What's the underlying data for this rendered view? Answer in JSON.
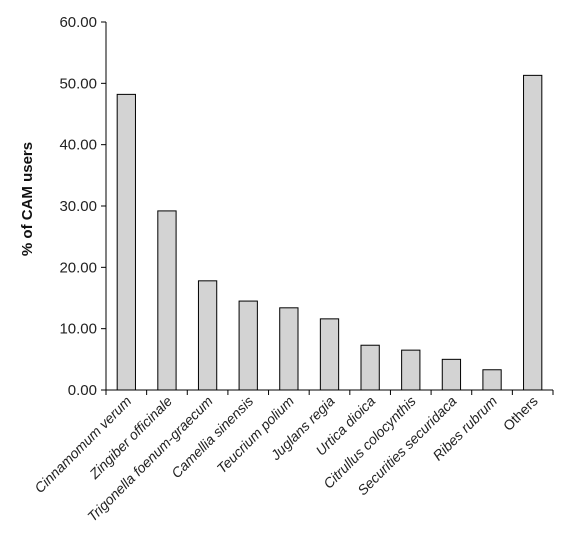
{
  "chart_data": {
    "type": "bar",
    "title": "",
    "xlabel": "",
    "ylabel": "% of CAM users",
    "ylim": [
      0,
      60
    ],
    "yticks": [
      "0.00",
      "10.00",
      "20.00",
      "30.00",
      "40.00",
      "50.00",
      "60.00"
    ],
    "grid": false,
    "bar_color": "#d3d3d3",
    "bar_edge_color": "#000000",
    "categories": [
      "Cinnamomum verum",
      "Zingiber officinale",
      "Trigonella foenum-graecum",
      "Camellia sinensis",
      "Teucrium polium",
      "Juglans regia",
      "Urtica dioica",
      "Citrullus colocynthis",
      "Securities securidaca",
      "Ribes rubrum",
      "Others"
    ],
    "values": [
      48.2,
      29.2,
      17.8,
      14.5,
      13.4,
      11.6,
      7.3,
      6.5,
      5.0,
      3.3,
      51.3
    ]
  }
}
